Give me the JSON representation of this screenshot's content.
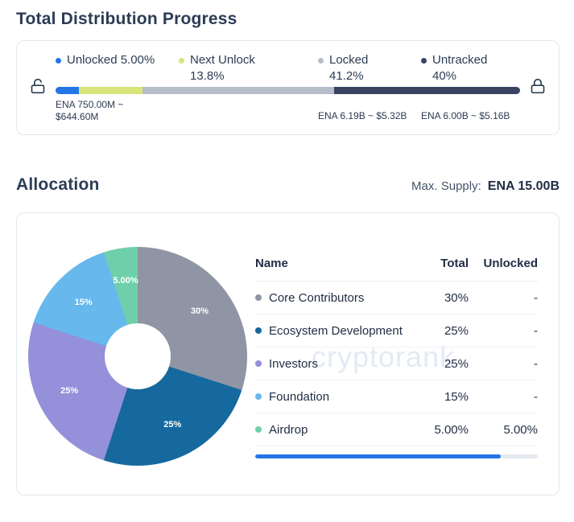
{
  "accent": "#2176e5",
  "distribution": {
    "title": "Total Distribution Progress",
    "legend": [
      {
        "label": "Unlocked 5.00%",
        "value": ""
      },
      {
        "label": "Next Unlock",
        "value": "13.8%"
      },
      {
        "label": "Locked",
        "value": "41.2%"
      },
      {
        "label": "Untracked",
        "value": "40%"
      }
    ],
    "unlocked_amount_line1": "ENA 750.00M ~",
    "unlocked_amount_line2": "$644.60M",
    "locked_amount": "ENA 6.19B ~ $5.32B",
    "untracked_amount": "ENA 6.00B ~ $5.16B"
  },
  "allocation": {
    "title": "Allocation",
    "max_supply_label": "Max. Supply:",
    "max_supply_value": "ENA 15.00B",
    "watermark": "cryptorank",
    "table": {
      "headers": {
        "name": "Name",
        "total": "Total",
        "unlocked": "Unlocked"
      },
      "rows": [
        {
          "name": "Core Contributors",
          "total": "30%",
          "unlocked": "-"
        },
        {
          "name": "Ecosystem Development",
          "total": "25%",
          "unlocked": "-"
        },
        {
          "name": "Investors",
          "total": "25%",
          "unlocked": "-"
        },
        {
          "name": "Foundation",
          "total": "15%",
          "unlocked": "-"
        },
        {
          "name": "Airdrop",
          "total": "5.00%",
          "unlocked": "5.00%"
        }
      ],
      "unlocked_progress_pct": 87
    }
  },
  "chart_data": [
    {
      "type": "pie",
      "title": "Allocation",
      "labels": [
        "Core Contributors",
        "Ecosystem Development",
        "Investors",
        "Foundation",
        "Airdrop"
      ],
      "values": [
        30,
        25,
        25,
        15,
        5
      ],
      "display_labels": [
        "30%",
        "25%",
        "25%",
        "15%",
        "5.00%"
      ],
      "colors": [
        "#8f95a4",
        "#16699f",
        "#9490d9",
        "#66b8ed",
        "#6ed0ab"
      ],
      "donut": true,
      "hole_ratio": 0.3,
      "start_angle_deg": 0,
      "direction": "clockwise",
      "legend_position": "right"
    },
    {
      "type": "bar",
      "subtype": "stacked-progress",
      "title": "Total Distribution Progress",
      "categories": [
        "Unlocked",
        "Next Unlock",
        "Locked",
        "Untracked"
      ],
      "values": [
        5.0,
        13.8,
        41.2,
        40.0
      ],
      "unit": "%",
      "colors": [
        "#2176e5",
        "#d9e47a",
        "#b6bdc9",
        "#3a4462"
      ],
      "annotations": [
        "ENA 750.00M ~ $644.60M",
        "ENA 6.19B ~ $5.32B",
        "ENA 6.00B ~ $5.16B"
      ]
    }
  ]
}
